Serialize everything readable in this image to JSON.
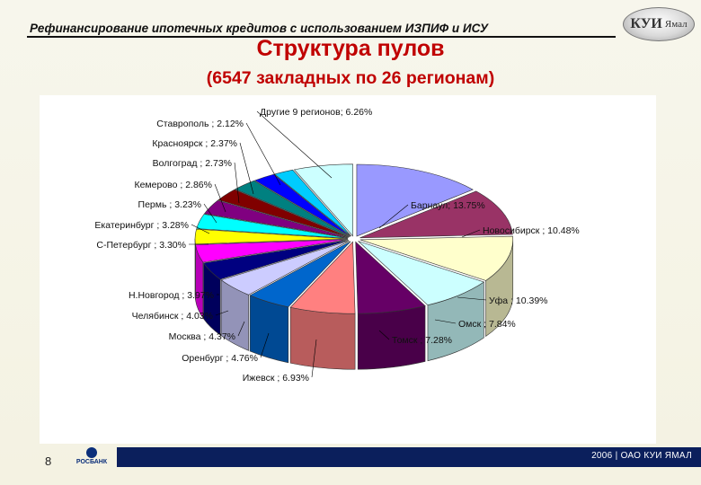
{
  "header": {
    "top_title": "Рефинансирование ипотечных кредитов с использованием ИЗПИФ и ИСУ",
    "main_title": "Структура пулов",
    "subtitle": "(6547 закладных по 26 регионам)"
  },
  "logo": {
    "text": "КУИ",
    "small": "Ямал"
  },
  "footer": {
    "page_number": "8",
    "bank": "РОСБАНК",
    "right_text": "2006 | ОАО КУИ ЯМАЛ"
  },
  "chart_data": {
    "type": "pie",
    "style": "3d-exploded",
    "legend": "none",
    "slices": [
      {
        "name": "Барнаул",
        "label": "Барнаул; 13.75%",
        "value": 13.75,
        "color": "#9999ff"
      },
      {
        "name": "Новосибирск",
        "label": "Новосибирск ; 10.48%",
        "value": 10.48,
        "color": "#993366"
      },
      {
        "name": "Уфа",
        "label": "Уфа ; 10.39%",
        "value": 10.39,
        "color": "#ffffcc"
      },
      {
        "name": "Омск",
        "label": "Омск ; 7.84%",
        "value": 7.84,
        "color": "#ccffff"
      },
      {
        "name": "Томск",
        "label": "Томск ; 7.28%",
        "value": 7.28,
        "color": "#660066"
      },
      {
        "name": "Ижевск",
        "label": "Ижевск ; 6.93%",
        "value": 6.93,
        "color": "#ff8080"
      },
      {
        "name": "Оренбург",
        "label": "Оренбург ; 4.76%",
        "value": 4.76,
        "color": "#0066cc"
      },
      {
        "name": "Москва",
        "label": "Москва ; 4.37%",
        "value": 4.37,
        "color": "#ccccff"
      },
      {
        "name": "Челябинск",
        "label": "Челябинск ; 4.03%",
        "value": 4.03,
        "color": "#000080"
      },
      {
        "name": "Н.Новгород",
        "label": "Н.Новгород ; 3.97%",
        "value": 3.97,
        "color": "#ff00ff"
      },
      {
        "name": "С-Петербург",
        "label": "С-Петербург ; 3.30%",
        "value": 3.3,
        "color": "#ffff00"
      },
      {
        "name": "Екатеринбург",
        "label": "Екатеринбург ; 3.28%",
        "value": 3.28,
        "color": "#00ffff"
      },
      {
        "name": "Пермь",
        "label": "Пермь ; 3.23%",
        "value": 3.23,
        "color": "#800080"
      },
      {
        "name": "Кемерово",
        "label": "Кемерово ; 2.86%",
        "value": 2.86,
        "color": "#800000"
      },
      {
        "name": "Волгоград",
        "label": "Волгоград ; 2.73%",
        "value": 2.73,
        "color": "#008080"
      },
      {
        "name": "Красноярск",
        "label": "Красноярск ; 2.37%",
        "value": 2.37,
        "color": "#0000ff"
      },
      {
        "name": "Ставрополь",
        "label": "Ставрополь ; 2.12%",
        "value": 2.12,
        "color": "#00ccff"
      },
      {
        "name": "Другие 9 регионов",
        "label": "Другие 9 регионов; 6.26%",
        "value": 6.26,
        "color": "#ccffff"
      }
    ]
  }
}
